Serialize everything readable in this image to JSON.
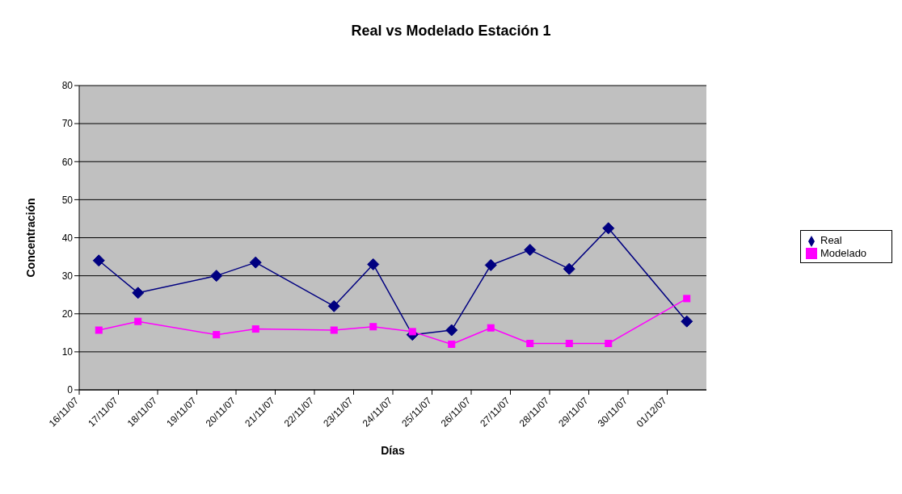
{
  "chart_data": {
    "type": "line",
    "title": "Real vs Modelado Estación 1",
    "xlabel": "Días",
    "ylabel": "Concentración",
    "x": [
      "--11-16T12:00",
      "--11-17T12:00",
      "--11-19T12:00",
      "--11-20T12:00",
      "--11-22T12:00",
      "--11-23T12:00",
      "--11-24T12:00",
      "--11-25T12:00",
      "--11-26T12:00",
      "--11-27T12:00",
      "--11-28T12:00",
      "--11-29T12:00",
      "--12-01T12:00"
    ],
    "series": [
      {
        "name": "Real",
        "color": "#000080",
        "marker": "diamond",
        "values": [
          34,
          25.5,
          30,
          33.5,
          22,
          33,
          14.5,
          15.7,
          32.8,
          36.8,
          31.8,
          42.5,
          18
        ]
      },
      {
        "name": "Modelado",
        "color": "#ff00ff",
        "marker": "square",
        "values": [
          15.7,
          18,
          14.5,
          16,
          15.7,
          16.6,
          15.3,
          12,
          16.3,
          12.2,
          12.2,
          12.2,
          24
        ]
      }
    ],
    "xlim": [
      "--11-16",
      "--12-02"
    ],
    "xticks": [
      {
        "value": "--11-16",
        "label": "16/11/07"
      },
      {
        "value": "--11-17",
        "label": "17/11/07"
      },
      {
        "value": "--11-18",
        "label": "18/11/07"
      },
      {
        "value": "--11-19",
        "label": "19/11/07"
      },
      {
        "value": "--11-20",
        "label": "20/11/07"
      },
      {
        "value": "--11-21",
        "label": "21/11/07"
      },
      {
        "value": "--11-22",
        "label": "22/11/07"
      },
      {
        "value": "--11-23",
        "label": "23/11/07"
      },
      {
        "value": "--11-24",
        "label": "24/11/07"
      },
      {
        "value": "--11-25",
        "label": "25/11/07"
      },
      {
        "value": "--11-26",
        "label": "26/11/07"
      },
      {
        "value": "--11-27",
        "label": "27/11/07"
      },
      {
        "value": "--11-28",
        "label": "28/11/07"
      },
      {
        "value": "--11-29",
        "label": "29/11/07"
      },
      {
        "value": "--11-30",
        "label": "30/11/07"
      },
      {
        "value": "--12-01",
        "label": "01/12/07"
      }
    ],
    "ylim": [
      0,
      80
    ],
    "yticks": [
      0,
      10,
      20,
      30,
      40,
      50,
      60,
      70,
      80
    ],
    "grid": "y",
    "legend": "right",
    "line_style": "solid"
  }
}
